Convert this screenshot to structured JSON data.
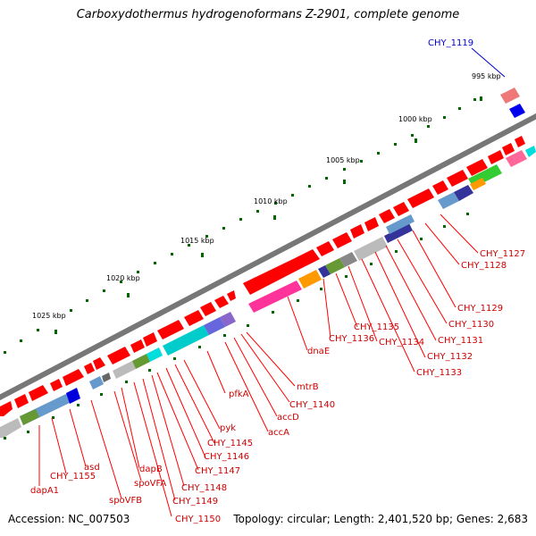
{
  "title": "Carboxydothermus hydrogenoformans Z-2901, complete genome",
  "footer": {
    "accession": "Accession: NC_007503",
    "summary": "Topology: circular; Length: 2,401,520 bp; Genes: 2,683"
  },
  "scale_labels": [
    "995 kbp",
    "1000 kbp",
    "1005 kbp",
    "1010 kbp",
    "1015 kbp",
    "1020 kbp",
    "1025 kbp"
  ],
  "gene_labels": [
    "CHY_1119",
    "CHY_1127",
    "CHY_1128",
    "CHY_1129",
    "CHY_1130",
    "CHY_1131",
    "CHY_1132",
    "CHY_1133",
    "CHY_1134",
    "CHY_1135",
    "CHY_1136",
    "dnaE",
    "mtrB",
    "CHY_1140",
    "accD",
    "accA",
    "pfkA",
    "pyk",
    "CHY_1145",
    "CHY_1146",
    "CHY_1147",
    "CHY_1148",
    "CHY_1149",
    "CHY_1150",
    "dapB",
    "spoVFA",
    "spoVFB",
    "asd",
    "CHY_1155",
    "dapA1"
  ],
  "colors": {
    "backbone": "#777777",
    "forward_gene": "#ff0000",
    "label": "#cc0000",
    "ticks": "#006600",
    "highlight": "#0000cc"
  }
}
